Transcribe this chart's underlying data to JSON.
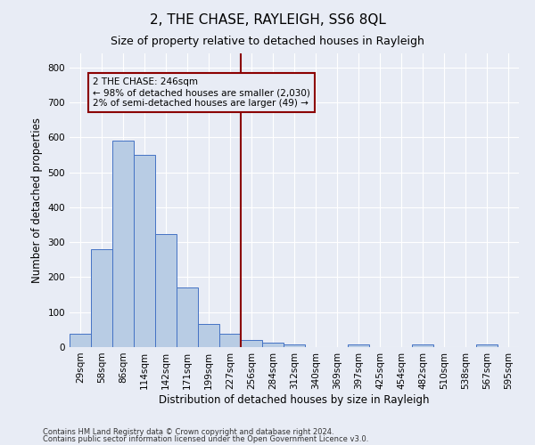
{
  "title": "2, THE CHASE, RAYLEIGH, SS6 8QL",
  "subtitle": "Size of property relative to detached houses in Rayleigh",
  "xlabel": "Distribution of detached houses by size in Rayleigh",
  "ylabel": "Number of detached properties",
  "footnote1": "Contains HM Land Registry data © Crown copyright and database right 2024.",
  "footnote2": "Contains public sector information licensed under the Open Government Licence v3.0.",
  "bin_labels": [
    "29sqm",
    "58sqm",
    "86sqm",
    "114sqm",
    "142sqm",
    "171sqm",
    "199sqm",
    "227sqm",
    "256sqm",
    "284sqm",
    "312sqm",
    "340sqm",
    "369sqm",
    "397sqm",
    "425sqm",
    "454sqm",
    "482sqm",
    "510sqm",
    "538sqm",
    "567sqm",
    "595sqm"
  ],
  "bar_values": [
    37,
    280,
    590,
    550,
    323,
    170,
    67,
    37,
    20,
    12,
    8,
    0,
    0,
    8,
    0,
    0,
    8,
    0,
    0,
    8,
    0
  ],
  "bar_color": "#b8cce4",
  "bar_edge_color": "#4472c4",
  "ylim": [
    0,
    840
  ],
  "yticks": [
    0,
    100,
    200,
    300,
    400,
    500,
    600,
    700,
    800
  ],
  "vline_bin": 8,
  "vline_color": "#8b0000",
  "annotation_line1": "2 THE CHASE: 246sqm",
  "annotation_line2": "← 98% of detached houses are smaller (2,030)",
  "annotation_line3": "2% of semi-detached houses are larger (49) →",
  "annotation_box_color": "#8b0000",
  "background_color": "#e8ecf5",
  "grid_color": "#ffffff",
  "title_fontsize": 11,
  "subtitle_fontsize": 9,
  "axis_label_fontsize": 8.5,
  "tick_fontsize": 7.5,
  "annotation_fontsize": 7.5
}
